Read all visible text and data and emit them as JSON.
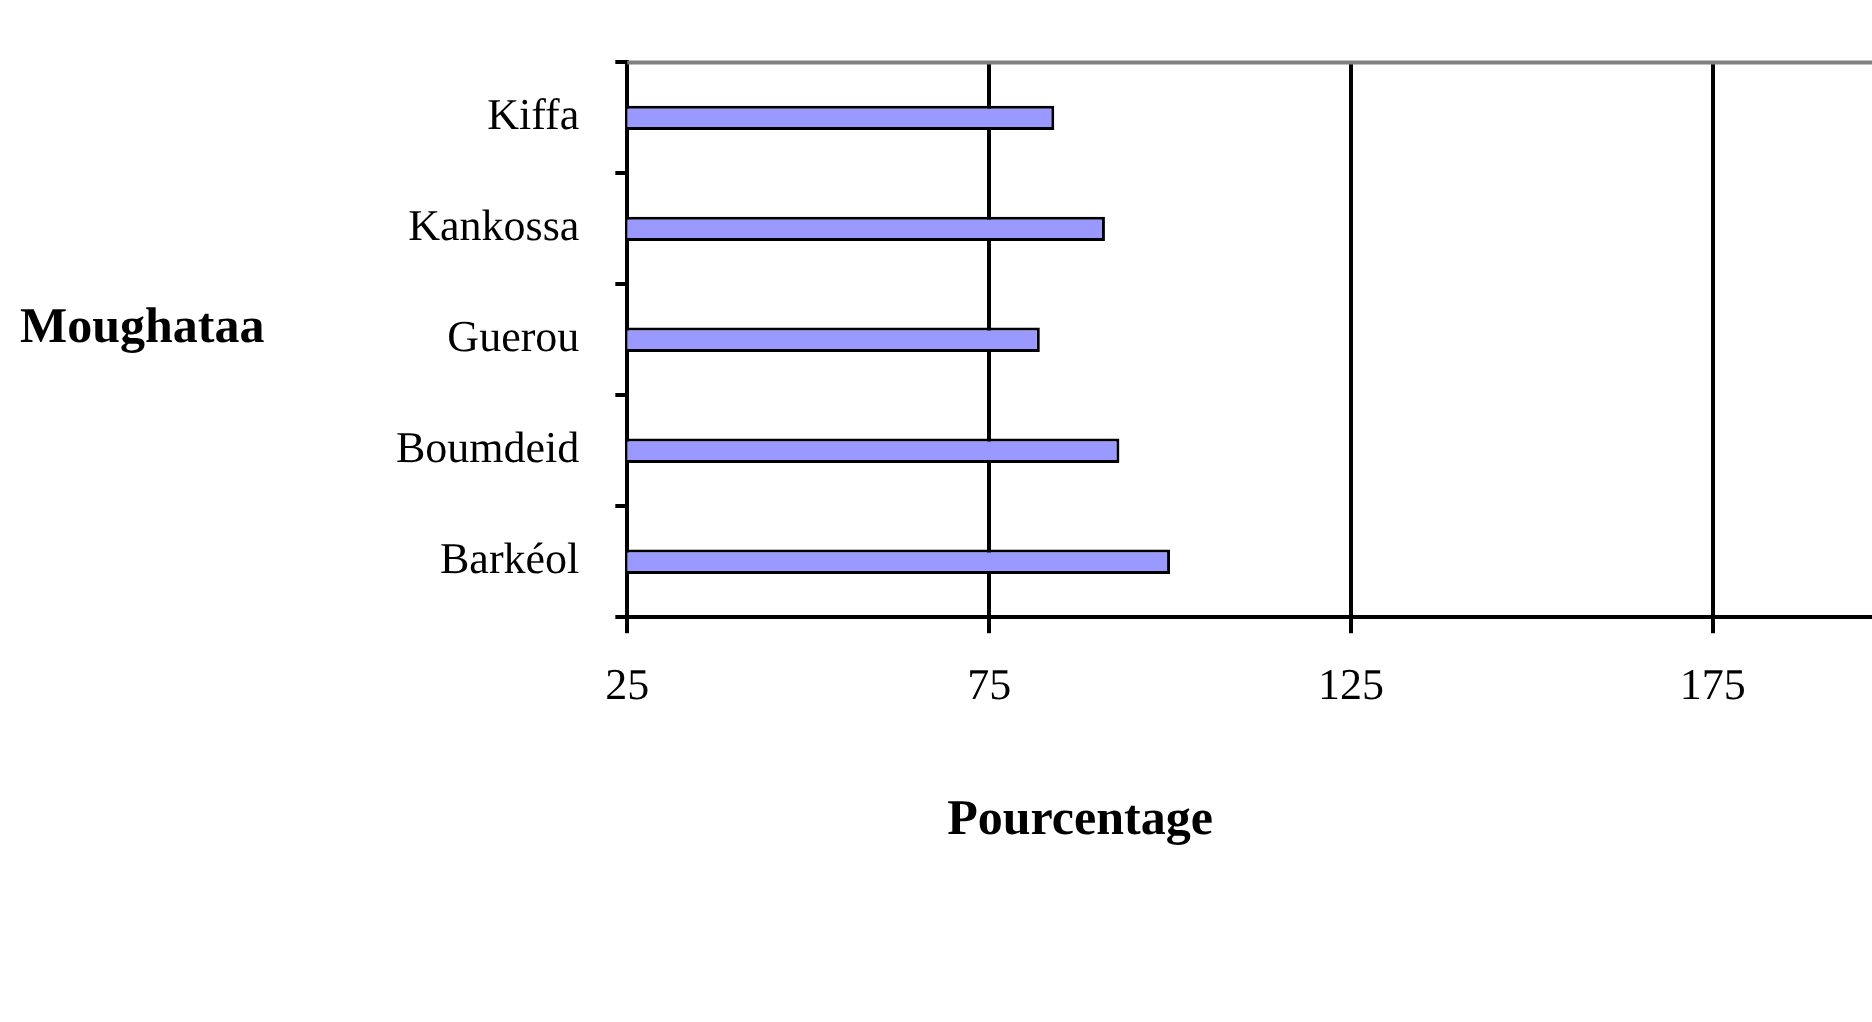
{
  "chart_data": {
    "type": "bar",
    "orientation": "horizontal",
    "categories": [
      "Kiffa",
      "Kankossa",
      "Guerou",
      "Boumdeid",
      "Barkéol"
    ],
    "values": [
      84,
      91,
      82,
      93,
      100
    ],
    "color": "#9999ff",
    "xlim": [
      25,
      197
    ],
    "xticks": [
      25,
      75,
      125,
      175
    ],
    "xlabel": "Pourcentage",
    "ylabel": "Moughataa",
    "grid": "x",
    "legend": false
  }
}
